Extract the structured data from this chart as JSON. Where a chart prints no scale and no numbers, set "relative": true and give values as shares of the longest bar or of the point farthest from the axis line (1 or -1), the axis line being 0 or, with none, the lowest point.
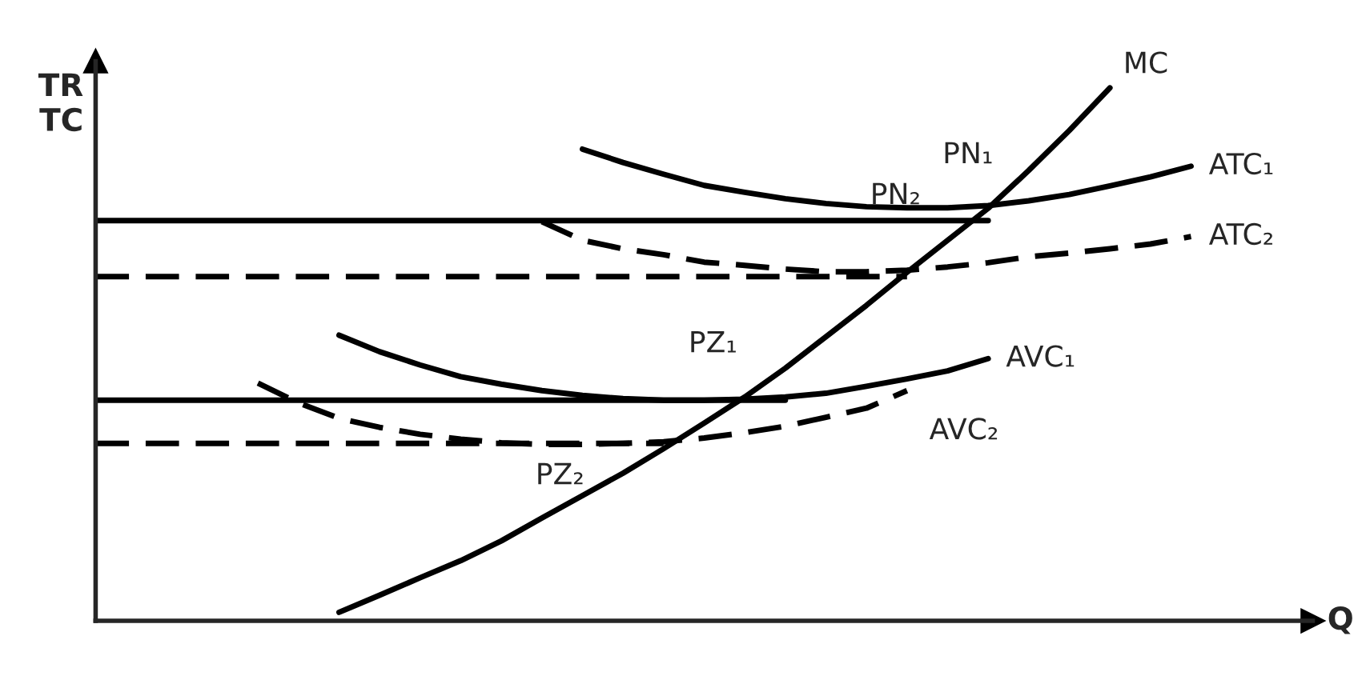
{
  "chart_data": {
    "type": "line",
    "relative": true,
    "xlabel": "Q",
    "ylabel": "TR\nTC",
    "marker": "none",
    "categories": [
      null,
      null,
      null,
      null,
      null,
      null,
      null,
      null,
      null,
      null,
      null,
      null,
      null,
      null,
      null,
      null,
      null,
      null,
      null,
      null,
      null,
      null,
      null,
      null,
      null,
      null,
      null,
      null,
      null,
      null,
      null
    ],
    "series": [
      {
        "name": "MC",
        "color": "#000000",
        "line_style": "solid",
        "values": [
          null,
          null,
          null,
          null,
          null,
          null,
          0.016,
          0.048,
          0.081,
          0.113,
          0.15,
          0.193,
          0.235,
          0.277,
          0.323,
          0.371,
          0.42,
          0.474,
          0.533,
          0.592,
          0.654,
          0.714,
          0.774,
          0.845,
          0.92,
          1,
          null,
          null,
          null,
          null,
          null
        ]
      },
      {
        "name": "ATC₁",
        "color": "#000000",
        "line_style": "solid",
        "values": [
          null,
          null,
          null,
          null,
          null,
          null,
          null,
          null,
          null,
          null,
          null,
          null,
          0.885,
          0.86,
          0.838,
          0.817,
          0.804,
          0.792,
          0.783,
          0.777,
          0.775,
          0.775,
          0.779,
          0.788,
          0.8,
          0.816,
          0.833,
          0.853,
          null,
          null,
          null
        ]
      },
      {
        "name": "ATC₂",
        "color": "#000000",
        "line_style": "dashed",
        "values": [
          null,
          null,
          null,
          null,
          null,
          null,
          null,
          null,
          null,
          null,
          null,
          0.749,
          0.714,
          0.698,
          0.687,
          0.673,
          0.667,
          0.66,
          0.655,
          0.655,
          0.658,
          0.664,
          0.672,
          0.683,
          0.69,
          0.698,
          0.707,
          0.721,
          null,
          null,
          null
        ]
      },
      {
        "name": "AVC₁",
        "color": "#000000",
        "line_style": "solid",
        "values": [
          null,
          null,
          null,
          null,
          null,
          null,
          0.536,
          0.505,
          0.48,
          0.458,
          0.444,
          0.432,
          0.423,
          0.417,
          0.414,
          0.414,
          0.416,
          0.42,
          0.427,
          0.44,
          0.454,
          0.469,
          0.492,
          null,
          null,
          null,
          null,
          null,
          null,
          null,
          null
        ]
      },
      {
        "name": "AVC₂",
        "color": "#000000",
        "line_style": "dashed",
        "values": [
          null,
          null,
          null,
          null,
          0.446,
          0.409,
          0.38,
          0.363,
          0.35,
          0.341,
          0.334,
          0.331,
          0.331,
          0.333,
          0.336,
          0.343,
          0.353,
          0.365,
          0.382,
          0.399,
          0.432,
          null,
          null,
          null,
          null,
          null,
          null,
          null,
          null,
          null,
          null
        ]
      },
      {
        "color": "#000000",
        "line_style": "solid",
        "values": [
          0.751,
          0.751,
          0.751,
          0.751,
          0.751,
          0.751,
          0.751,
          0.751,
          0.751,
          0.751,
          0.751,
          0.751,
          0.751,
          0.751,
          0.751,
          0.751,
          0.751,
          0.751,
          0.751,
          0.751,
          0.751,
          0.751,
          0.751,
          null,
          null,
          null,
          null,
          null,
          null,
          null,
          null
        ]
      },
      {
        "color": "#000000",
        "line_style": "dashed",
        "values": [
          0.646,
          0.646,
          0.646,
          0.646,
          0.646,
          0.646,
          0.646,
          0.646,
          0.646,
          0.646,
          0.646,
          0.646,
          0.646,
          0.646,
          0.646,
          0.646,
          0.646,
          0.646,
          0.646,
          0.646,
          0.646,
          null,
          null,
          null,
          null,
          null,
          null,
          null,
          null,
          null,
          null
        ]
      },
      {
        "color": "#000000",
        "line_style": "solid",
        "values": [
          0.414,
          0.414,
          0.414,
          0.414,
          0.414,
          0.414,
          0.414,
          0.414,
          0.414,
          0.414,
          0.414,
          0.414,
          0.414,
          0.414,
          0.414,
          0.414,
          0.414,
          0.414,
          null,
          null,
          null,
          null,
          null,
          null,
          null,
          null,
          null,
          null,
          null,
          null,
          null
        ]
      },
      {
        "color": "#000000",
        "line_style": "dashed",
        "values": [
          0.333,
          0.333,
          0.333,
          0.333,
          0.333,
          0.333,
          0.333,
          0.333,
          0.333,
          0.333,
          0.333,
          0.333,
          0.333,
          0.333,
          0.333,
          null,
          null,
          null,
          null,
          null,
          null,
          null,
          null,
          null,
          null,
          null,
          null,
          null,
          null,
          null,
          null
        ]
      }
    ],
    "annotations": [
      "PN₁",
      "PN₂",
      "PZ₁",
      "PZ₂"
    ]
  }
}
